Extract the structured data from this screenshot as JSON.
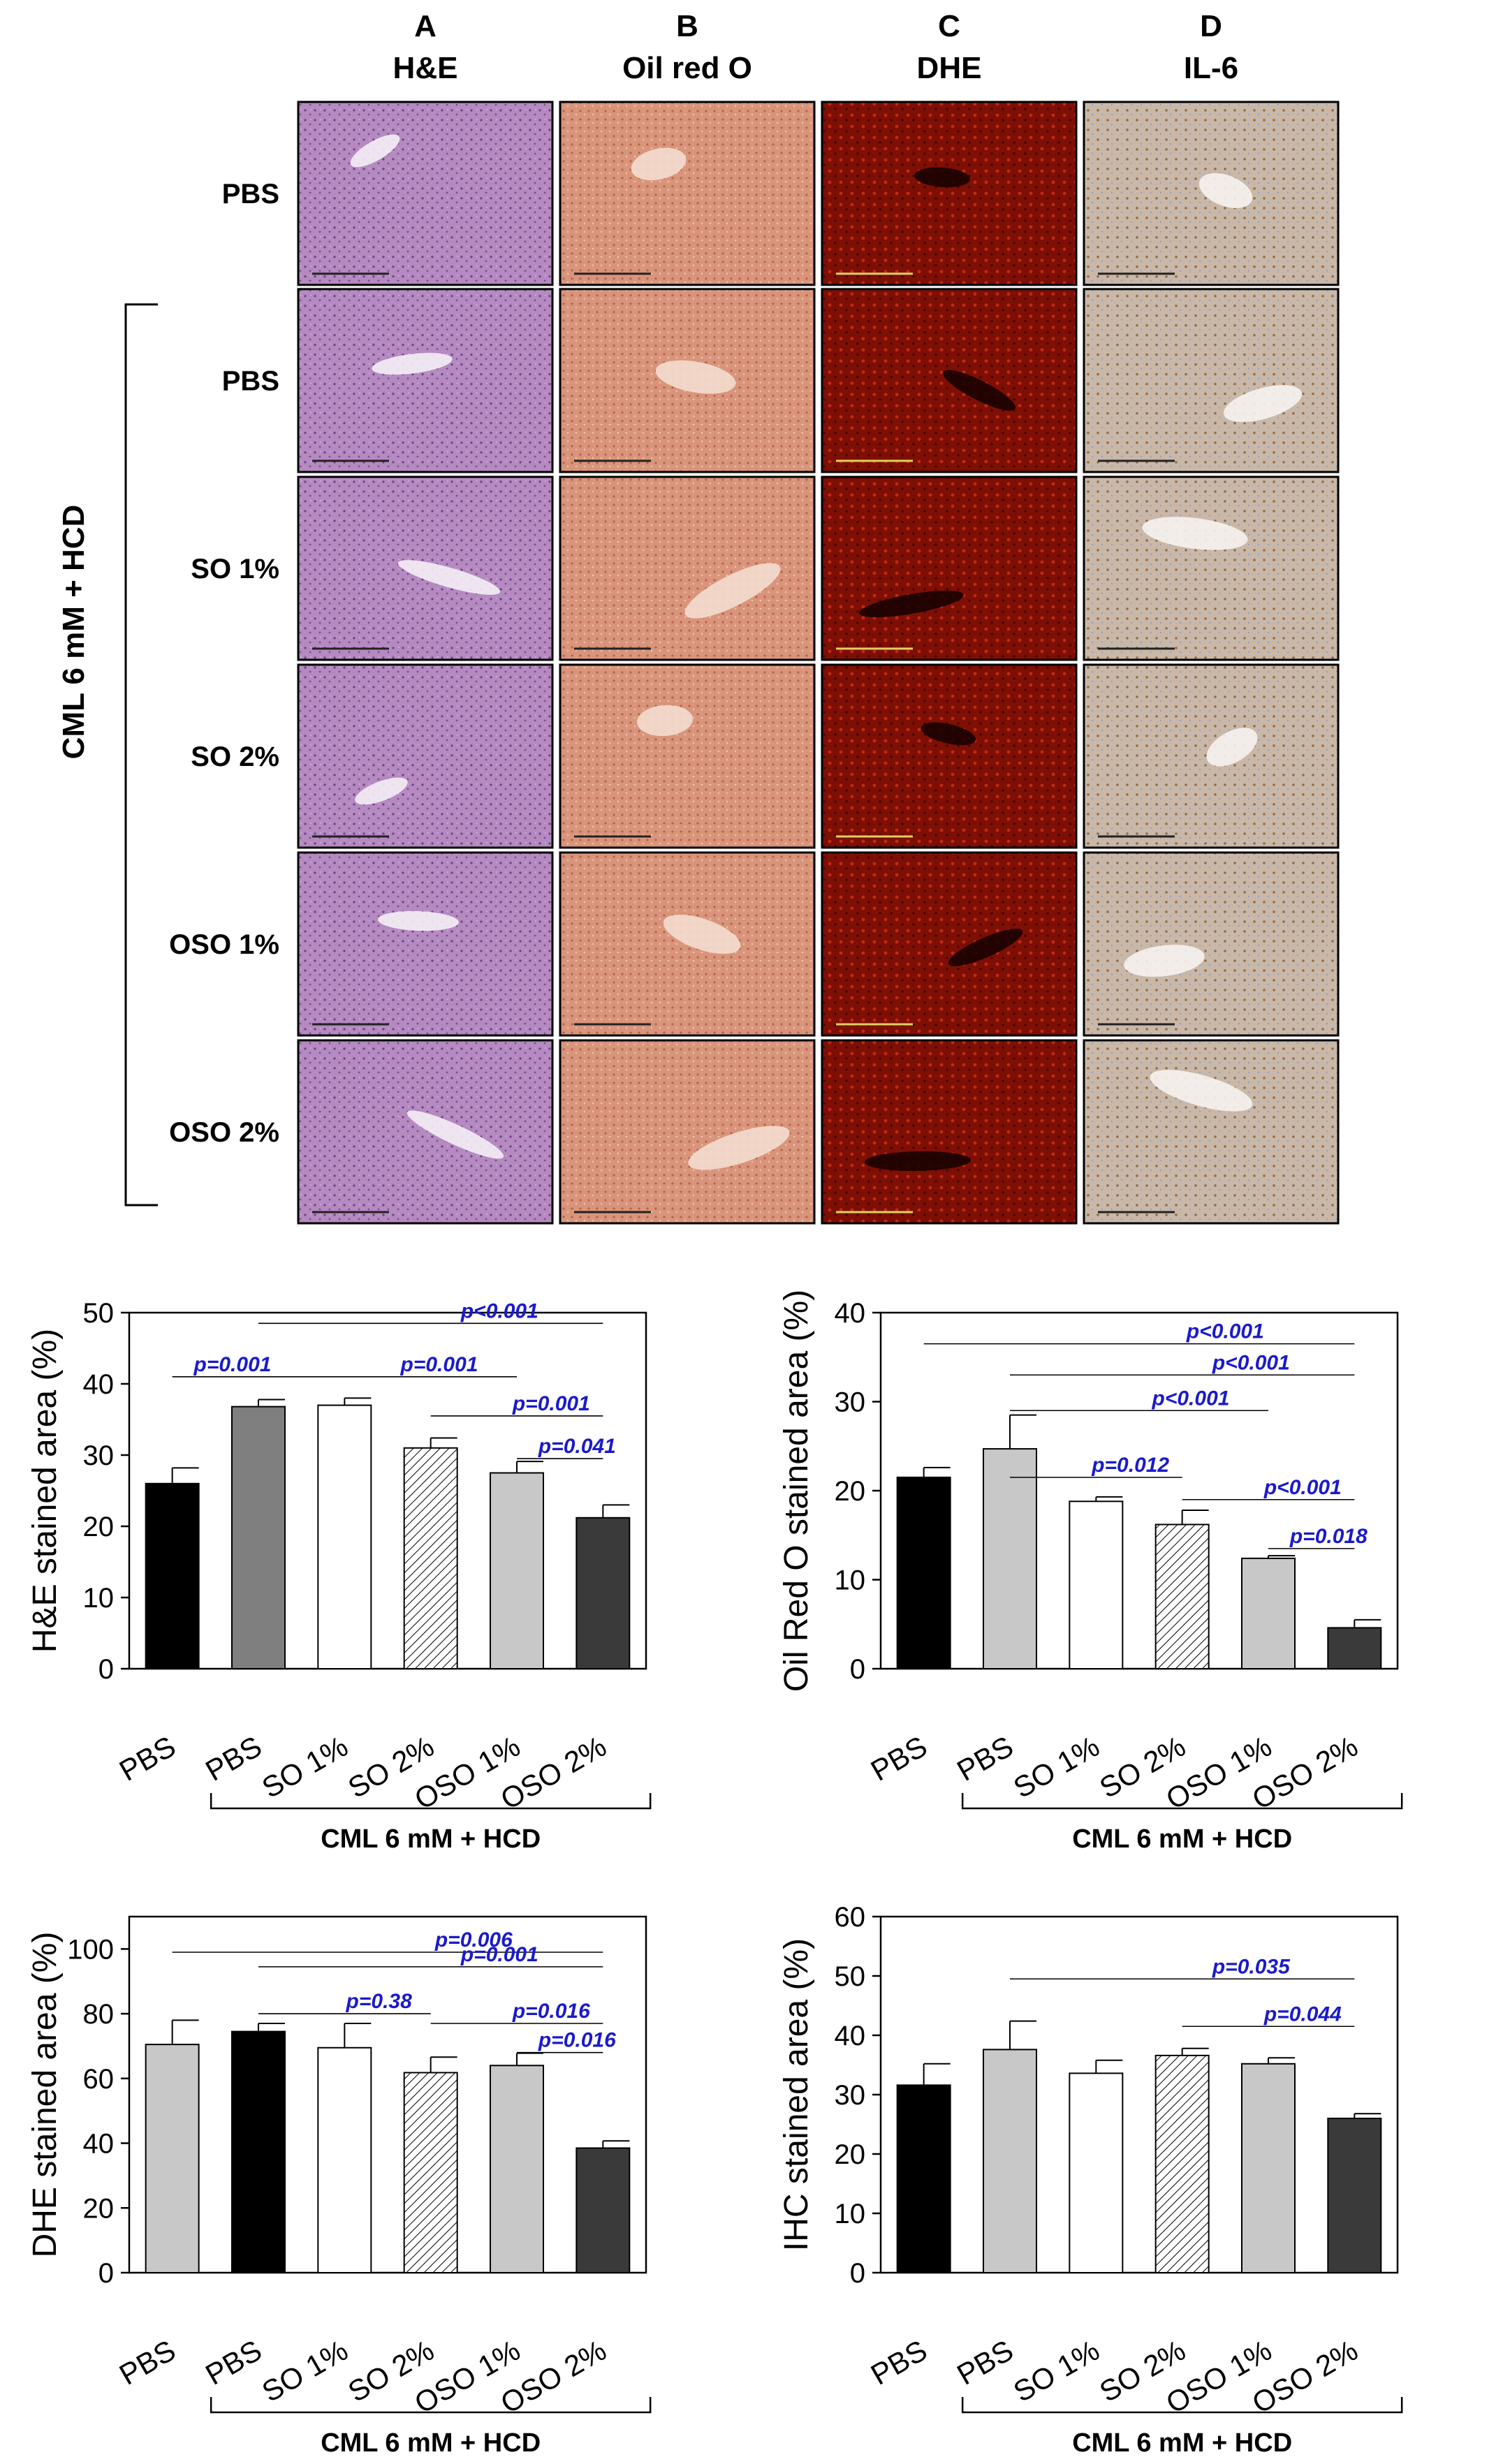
{
  "micrograph_panel": {
    "columns": [
      {
        "letter": "A",
        "stain": "H&E",
        "tone": "he"
      },
      {
        "letter": "B",
        "stain": "Oil red O",
        "tone": "oro"
      },
      {
        "letter": "C",
        "stain": "DHE",
        "tone": "dhe"
      },
      {
        "letter": "D",
        "stain": "IL-6",
        "tone": "il6"
      }
    ],
    "rows": [
      "PBS",
      "PBS",
      "SO 1%",
      "SO 2%",
      "OSO 1%",
      "OSO 2%"
    ],
    "group_label": "CML 6 mM + HCD"
  },
  "chart_data": [
    {
      "type": "bar",
      "ylabel": "H&E stained area (%)",
      "ylim": [
        0,
        50
      ],
      "yticks": [
        0,
        10,
        20,
        30,
        40,
        50
      ],
      "categories": [
        "PBS",
        "PBS",
        "SO 1%",
        "SO 2%",
        "OSO 1%",
        "OSO 2%"
      ],
      "values": [
        26,
        36.8,
        37,
        31,
        27.5,
        21.2
      ],
      "errors": [
        2.2,
        1,
        1,
        1.4,
        1.6,
        1.8
      ],
      "fills": [
        "black",
        "gray",
        "white",
        "hatch",
        "light",
        "dark"
      ],
      "group_label": "CML 6 mM + HCD",
      "comparisons": [
        {
          "label": "p=0.001",
          "from": 0,
          "to": 1,
          "y": 41
        },
        {
          "label": "p<0.001",
          "from": 1,
          "to": 5,
          "y": 48.5
        },
        {
          "label": "p=0.001",
          "from": 1,
          "to": 4,
          "y": 41
        },
        {
          "label": "p=0.001",
          "from": 3,
          "to": 5,
          "y": 35.5
        },
        {
          "label": "p=0.041",
          "from": 4,
          "to": 5,
          "y": 29.5
        }
      ]
    },
    {
      "type": "bar",
      "ylabel": "Oil Red O stained area (%)",
      "ylim": [
        0,
        40
      ],
      "yticks": [
        0,
        10,
        20,
        30,
        40
      ],
      "categories": [
        "PBS",
        "PBS",
        "SO 1%",
        "SO 2%",
        "OSO 1%",
        "OSO 2%"
      ],
      "values": [
        21.5,
        24.7,
        18.8,
        16.2,
        12.4,
        4.6
      ],
      "errors": [
        1.1,
        3.8,
        0.5,
        1.6,
        0.3,
        0.9
      ],
      "fills": [
        "black",
        "light",
        "white",
        "hatch",
        "light",
        "dark"
      ],
      "group_label": "CML 6 mM + HCD",
      "comparisons": [
        {
          "label": "p<0.001",
          "from": 0,
          "to": 5,
          "y": 36.5
        },
        {
          "label": "p<0.001",
          "from": 1,
          "to": 5,
          "y": 33
        },
        {
          "label": "p<0.001",
          "from": 1,
          "to": 4,
          "y": 29
        },
        {
          "label": "p=0.012",
          "from": 1,
          "to": 3,
          "y": 21.5
        },
        {
          "label": "p<0.001",
          "from": 3,
          "to": 5,
          "y": 19
        },
        {
          "label": "p=0.018",
          "from": 4,
          "to": 5,
          "y": 13.5
        }
      ]
    },
    {
      "type": "bar",
      "ylabel": "DHE stained area (%)",
      "ylim": [
        0,
        110
      ],
      "yticks": [
        0,
        20,
        40,
        60,
        80,
        100
      ],
      "categories": [
        "PBS",
        "PBS",
        "SO 1%",
        "SO 2%",
        "OSO 1%",
        "OSO 2%"
      ],
      "values": [
        70.5,
        74.5,
        69.5,
        61.8,
        64,
        38.5
      ],
      "errors": [
        7.5,
        2.5,
        7.5,
        4.8,
        3.8,
        2.2
      ],
      "fills": [
        "light",
        "black",
        "white",
        "hatch",
        "light",
        "dark"
      ],
      "group_label": "CML 6 mM + HCD",
      "comparisons": [
        {
          "label": "p=0.006",
          "from": 0,
          "to": 5,
          "y": 99
        },
        {
          "label": "p=0.001",
          "from": 1,
          "to": 5,
          "y": 94.5
        },
        {
          "label": "p=0.38",
          "from": 1,
          "to": 3,
          "y": 80
        },
        {
          "label": "p=0.016",
          "from": 3,
          "to": 5,
          "y": 77
        },
        {
          "label": "p=0.016",
          "from": 4,
          "to": 5,
          "y": 68
        }
      ]
    },
    {
      "type": "bar",
      "ylabel": "IHC stained area (%)",
      "ylim": [
        0,
        60
      ],
      "yticks": [
        0,
        10,
        20,
        30,
        40,
        50,
        60
      ],
      "categories": [
        "PBS",
        "PBS",
        "SO 1%",
        "SO 2%",
        "OSO 1%",
        "OSO 2%"
      ],
      "values": [
        31.6,
        37.6,
        33.6,
        36.6,
        35.2,
        26
      ],
      "errors": [
        3.6,
        4.8,
        2.2,
        1.2,
        1,
        0.8
      ],
      "fills": [
        "black",
        "light",
        "white",
        "hatch",
        "light",
        "dark"
      ],
      "group_label": "CML 6 mM + HCD",
      "comparisons": [
        {
          "label": "p=0.035",
          "from": 1,
          "to": 5,
          "y": 49.5
        },
        {
          "label": "p=0.044",
          "from": 3,
          "to": 5,
          "y": 41.5
        }
      ]
    }
  ]
}
